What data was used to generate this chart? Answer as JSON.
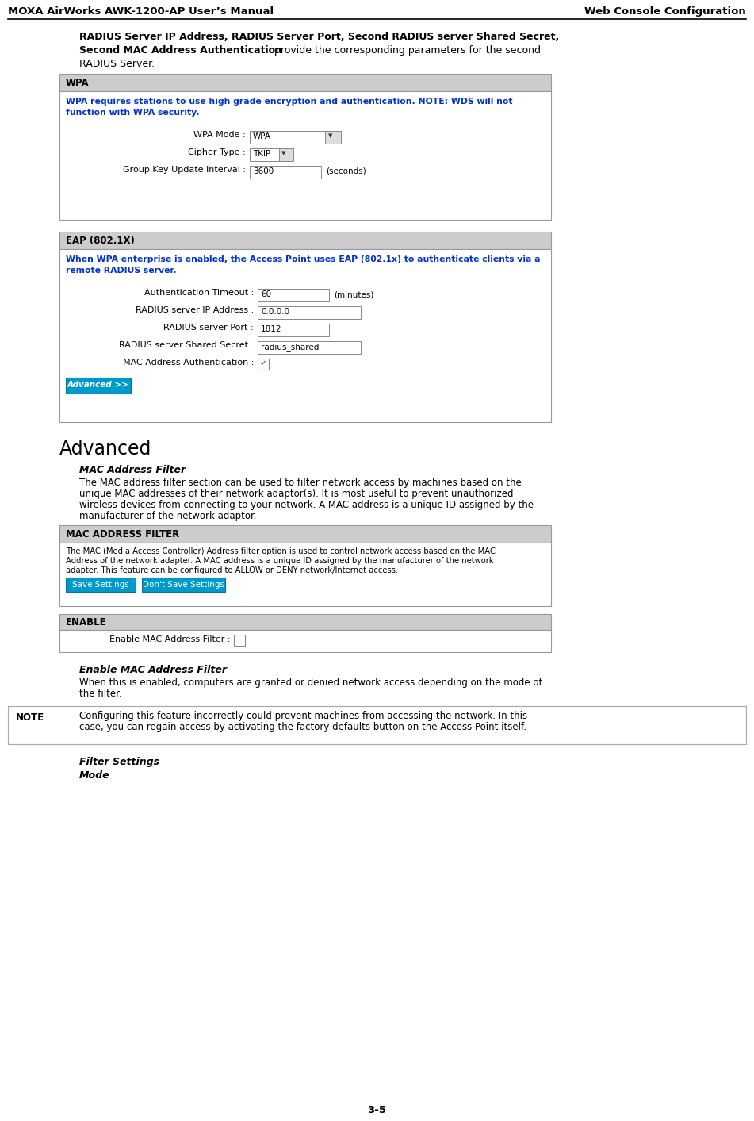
{
  "page_title_left": "MOXA AirWorks AWK-1200-AP User’s Manual",
  "page_title_right": "Web Console Configuration",
  "page_number": "3-5",
  "bg_color": "#ffffff",
  "intro_line1_bold": "RADIUS Server IP Address, RADIUS Server Port, Second RADIUS server Shared Secret,",
  "intro_line2_bold": "Second MAC Address Authentication",
  "intro_line2_normal": " provide the corresponding parameters for the second",
  "intro_line3": "RADIUS Server.",
  "wpa_title": "WPA",
  "wpa_blue_line1": "WPA requires stations to use high grade encryption and authentication. NOTE: WDS will not",
  "wpa_blue_line2": "function with WPA security.",
  "wpa_fields": [
    {
      "label": "WPA Mode :",
      "value": "WPA",
      "type": "dropdown_wide"
    },
    {
      "label": "Cipher Type :",
      "value": "TKIP",
      "type": "dropdown_small"
    },
    {
      "label": "Group Key Update Interval :",
      "value": "3600",
      "type": "input",
      "suffix": "(seconds)"
    }
  ],
  "eap_title": "EAP (802.1X)",
  "eap_blue_line1": "When WPA enterprise is enabled, the Access Point uses EAP (802.1x) to authenticate clients via a",
  "eap_blue_line2": "remote RADIUS server.",
  "eap_fields": [
    {
      "label": "Authentication Timeout :",
      "value": "60",
      "type": "input",
      "suffix": "(minutes)"
    },
    {
      "label": "RADIUS server IP Address :",
      "value": "0.0.0.0",
      "type": "input_wide"
    },
    {
      "label": "RADIUS server Port :",
      "value": "1812",
      "type": "input"
    },
    {
      "label": "RADIUS server Shared Secret :",
      "value": "radius_shared",
      "type": "input_wide"
    },
    {
      "label": "MAC Address Authentication :",
      "value": "",
      "type": "checkbox_checked"
    }
  ],
  "eap_button": "Advanced >>",
  "adv_title": "Advanced",
  "mac_filter_title": "MAC Address Filter",
  "mac_filter_body_line1": "The MAC address filter section can be used to filter network access by machines based on the",
  "mac_filter_body_line2": "unique MAC addresses of their network adaptor(s). It is most useful to prevent unauthorized",
  "mac_filter_body_line3": "wireless devices from connecting to your network. A MAC address is a unique ID assigned by the",
  "mac_filter_body_line4": "manufacturer of the network adaptor.",
  "maf_box_title": "MAC ADDRESS FILTER",
  "maf_box_line1": "The MAC (Media Access Controller) Address filter option is used to control network access based on the MAC",
  "maf_box_line2": "Address of the network adapter. A MAC address is a unique ID assigned by the manufacturer of the network",
  "maf_box_line3": "adapter. This feature can be configured to ALLOW or DENY network/Internet access.",
  "maf_btn1": "Save Settings",
  "maf_btn2": "Don't Save Settings",
  "enable_title": "ENABLE",
  "enable_label": "Enable MAC Address Filter :",
  "ef_title": "Enable MAC Address Filter",
  "ef_body_line1": "When this is enabled, computers are granted or denied network access depending on the mode of",
  "ef_body_line2": "the filter.",
  "note_label": "NOTE",
  "note_line1": "Configuring this feature incorrectly could prevent machines from accessing the network. In this",
  "note_line2": "case, you can regain access by activating the factory defaults button on the Access Point itself.",
  "fs_title": "Filter Settings",
  "fs_mode": "Mode",
  "header_bg": "#cccccc",
  "box_border": "#999999",
  "blue_color": "#0033cc",
  "btn_blue": "#0099cc",
  "note_border": "#aaaaaa"
}
